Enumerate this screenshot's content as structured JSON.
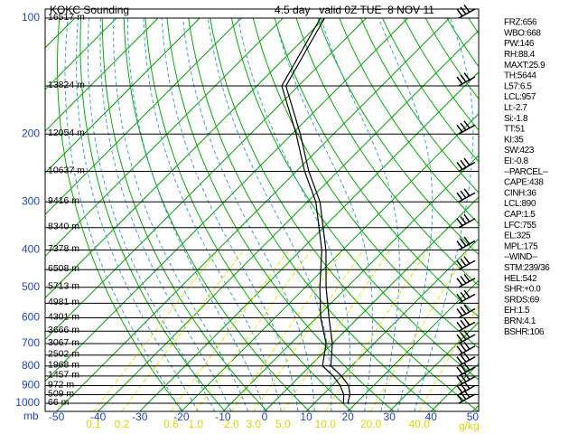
{
  "chart_data": {
    "type": "skewt",
    "title": "KOKC Sounding",
    "valid": "4.5 day   valid 0Z TUE  8 NOV 11",
    "y_unit": "mb",
    "x_unit": "g/kg",
    "log_y": true,
    "ylim": [
      100,
      1050
    ],
    "yticks": [
      100,
      200,
      300,
      400,
      500,
      600,
      700,
      800,
      900,
      1000
    ],
    "xlim": [
      -50,
      50
    ],
    "xticks": [
      -50,
      -40,
      -30,
      -20,
      -10,
      0,
      10,
      20,
      30,
      40,
      50
    ],
    "height_levels": [
      {
        "value": 100,
        "label": "16517 m"
      },
      {
        "value": 150,
        "label": "13824 m"
      },
      {
        "value": 200,
        "label": "12054 m"
      },
      {
        "value": 250,
        "label": "10637 m"
      },
      {
        "value": 300,
        "label": "9416 m"
      },
      {
        "value": 350,
        "label": "8340 m"
      },
      {
        "value": 400,
        "label": "7378 m"
      },
      {
        "value": 450,
        "label": "6508 m"
      },
      {
        "value": 500,
        "label": "5713 m"
      },
      {
        "value": 550,
        "label": "4981 m"
      },
      {
        "value": 600,
        "label": "4301 m"
      },
      {
        "value": 650,
        "label": "3666 m"
      },
      {
        "value": 700,
        "label": "3067 m"
      },
      {
        "value": 750,
        "label": "2502 m"
      },
      {
        "value": 800,
        "label": "1968 m"
      },
      {
        "value": 850,
        "label": "1457 m"
      },
      {
        "value": 900,
        "label": "972 m"
      },
      {
        "value": 950,
        "label": "509 m"
      },
      {
        "value": 1000,
        "label": "66 m"
      }
    ],
    "mixing_ratios": [
      0.1,
      0.2,
      0.6,
      {
        "value": 1,
        "label": "1.0"
      },
      {
        "value": 2,
        "label": "2.0"
      },
      {
        "value": 3,
        "label": "3.0"
      },
      {
        "value": 5,
        "label": "5.0"
      },
      {
        "value": 10,
        "label": "10.0"
      },
      {
        "value": 20,
        "label": "20.0"
      },
      {
        "value": 40,
        "label": "40.0"
      }
    ],
    "pressure": [
      1000,
      950,
      900,
      850,
      800,
      700,
      600,
      500,
      400,
      300,
      250,
      200,
      150,
      100
    ],
    "series": [
      {
        "name": "Temperature",
        "color": "#000000",
        "values": [
          18,
          16.5,
          14,
          10,
          5,
          0,
          -7,
          -15,
          -24,
          -37,
          -47,
          -58,
          -73,
          -80
        ]
      },
      {
        "name": "Dewpoint",
        "color": "#000000",
        "values": [
          17,
          15,
          12,
          8,
          3,
          -1.5,
          -9,
          -16.5,
          -25,
          -38,
          -48,
          -59,
          -74,
          -81
        ]
      }
    ],
    "indices": [
      "FRZ:656",
      "WBO:668",
      "PW:146",
      "RH:88.4",
      "MAXT:25.9",
      "TH:5644",
      "L57:6.5",
      "LCL:957",
      "Lt:-2.7",
      "Si:-1.8",
      "TT:51",
      "KI:35",
      "SW:423",
      "EI:-0.8",
      "--PARCEL--",
      "CAPE:438",
      "CINH:36",
      "LCL:890",
      "CAP:1.5",
      "LFC:755",
      "EL:325",
      "MPL:175",
      "--WIND--",
      "STM:239/36",
      "HEL:542",
      "SHR:+0.0",
      "SRDS:69",
      "EH:1.5",
      "BRN:4.1",
      "BSHR:106"
    ]
  }
}
